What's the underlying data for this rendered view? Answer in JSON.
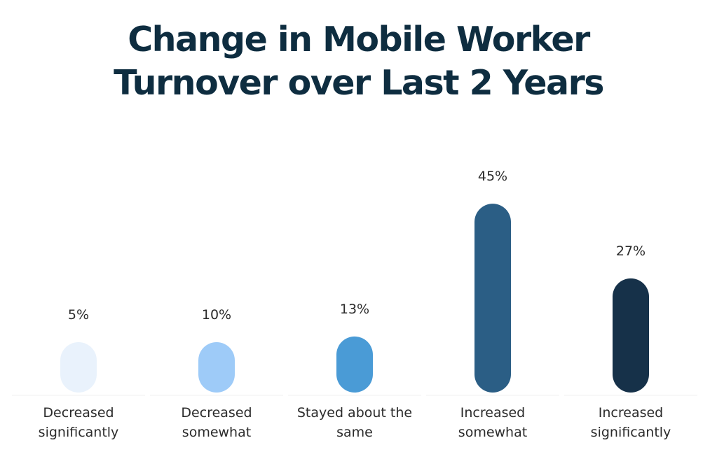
{
  "title_lines": [
    "Change in Mobile Worker",
    "Turnover over Last 2 Years"
  ],
  "chart_data": {
    "type": "bar",
    "title": "Change in Mobile Worker Turnover over Last 2 Years",
    "categories": [
      [
        "Decreased",
        "significantly"
      ],
      [
        "Decreased",
        "somewhat"
      ],
      [
        "Stayed about the",
        "same"
      ],
      [
        "Increased",
        "somewhat"
      ],
      [
        "Increased",
        "significantly"
      ]
    ],
    "values": [
      5,
      10,
      13,
      45,
      27
    ],
    "value_labels": [
      "5%",
      "10%",
      "13%",
      "45%",
      "27%"
    ],
    "colors": [
      "#e9f2fc",
      "#9ecbf8",
      "#4a9bd6",
      "#2b5e85",
      "#163149"
    ],
    "grid": false,
    "legend": "none"
  }
}
